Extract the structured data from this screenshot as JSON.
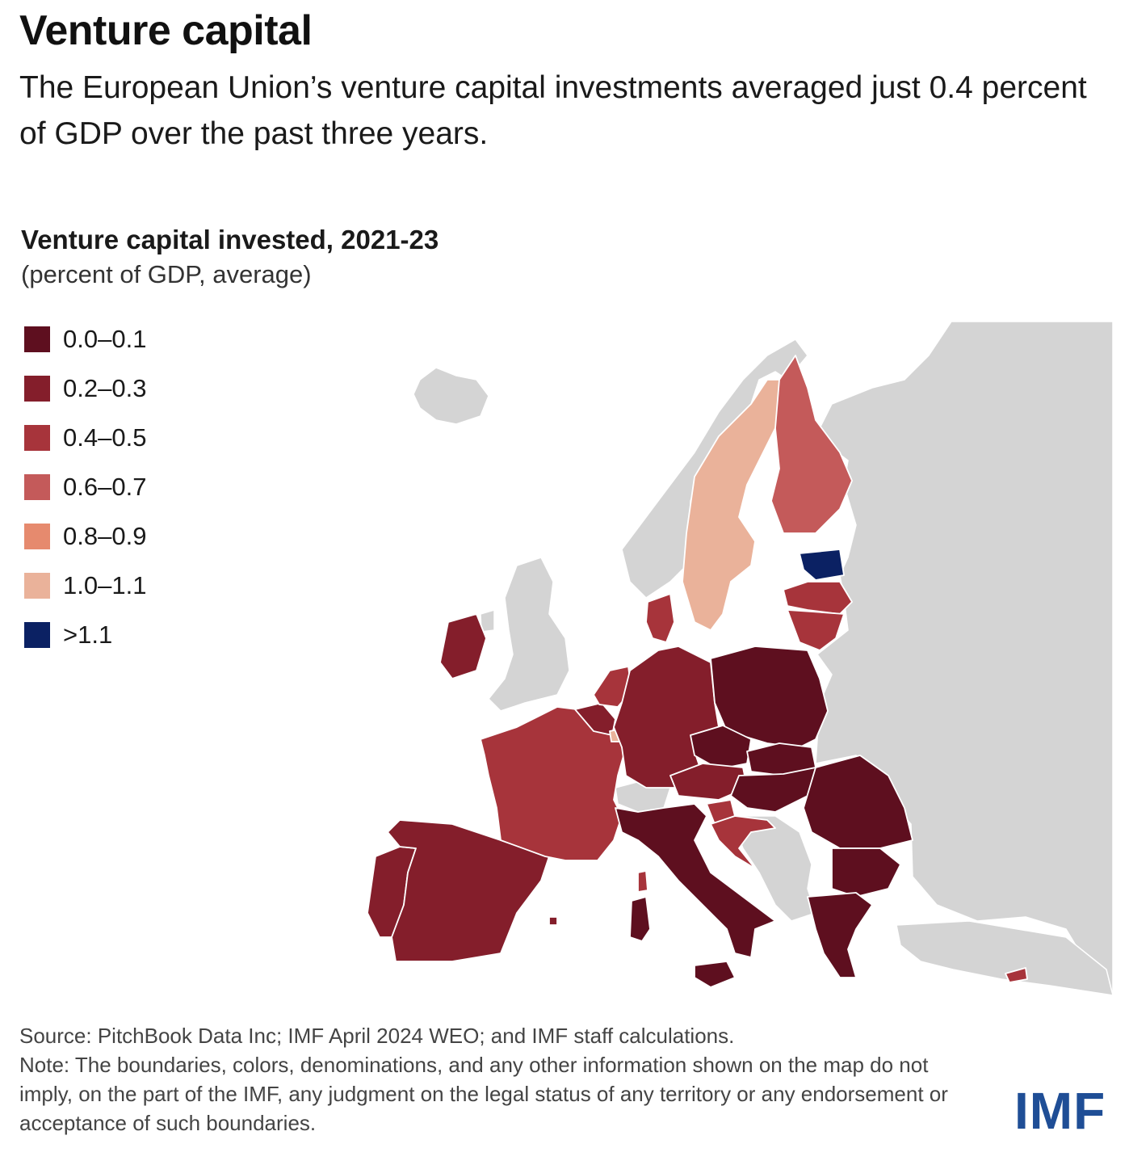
{
  "header": {
    "title": "Venture capital",
    "subtitle": "The European Union’s venture capital investments averaged just 0.4 percent of GDP over the past three years."
  },
  "chart": {
    "title": "Venture capital invested, 2021-23",
    "subtitle": "(percent of GDP, average)"
  },
  "legend": [
    {
      "label": "0.0–0.1",
      "color": "#5e0f1f"
    },
    {
      "label": "0.2–0.3",
      "color": "#841e2b"
    },
    {
      "label": "0.4–0.5",
      "color": "#a7343b"
    },
    {
      "label": "0.6–0.7",
      "color": "#c45a5a"
    },
    {
      "label": "0.8–0.9",
      "color": "#e68a6e"
    },
    {
      "label": "1.0–1.1",
      "color": "#eab29a"
    },
    {
      "label": ">1.1",
      "color": "#0b2163"
    }
  ],
  "colors": {
    "non_eu": "#d4d4d4",
    "border": "#ffffff",
    "logo": "#1f4e96"
  },
  "chart_data": {
    "type": "choropleth",
    "regions": [
      {
        "name": "Estonia",
        "bin": ">1.1"
      },
      {
        "name": "Sweden",
        "bin": "1.0–1.1"
      },
      {
        "name": "Luxembourg",
        "bin": "1.0–1.1"
      },
      {
        "name": "Finland",
        "bin": "0.6–0.7"
      },
      {
        "name": "Latvia",
        "bin": "0.4–0.5"
      },
      {
        "name": "Lithuania",
        "bin": "0.4–0.5"
      },
      {
        "name": "France",
        "bin": "0.4–0.5"
      },
      {
        "name": "Netherlands",
        "bin": "0.4–0.5"
      },
      {
        "name": "Denmark",
        "bin": "0.4–0.5"
      },
      {
        "name": "Slovenia",
        "bin": "0.4–0.5"
      },
      {
        "name": "Croatia",
        "bin": "0.4–0.5"
      },
      {
        "name": "Cyprus",
        "bin": "0.4–0.5"
      },
      {
        "name": "Germany",
        "bin": "0.2–0.3"
      },
      {
        "name": "Spain",
        "bin": "0.2–0.3"
      },
      {
        "name": "Portugal",
        "bin": "0.2–0.3"
      },
      {
        "name": "Ireland",
        "bin": "0.2–0.3"
      },
      {
        "name": "Belgium",
        "bin": "0.2–0.3"
      },
      {
        "name": "Austria",
        "bin": "0.2–0.3"
      },
      {
        "name": "Malta",
        "bin": "0.2–0.3"
      },
      {
        "name": "Poland",
        "bin": "0.0–0.1"
      },
      {
        "name": "Czech Republic",
        "bin": "0.0–0.1"
      },
      {
        "name": "Slovakia",
        "bin": "0.0–0.1"
      },
      {
        "name": "Hungary",
        "bin": "0.0–0.1"
      },
      {
        "name": "Romania",
        "bin": "0.0–0.1"
      },
      {
        "name": "Bulgaria",
        "bin": "0.0–0.1"
      },
      {
        "name": "Greece",
        "bin": "0.0–0.1"
      },
      {
        "name": "Italy",
        "bin": "0.0–0.1"
      }
    ]
  },
  "footer": {
    "source": "Source: PitchBook Data Inc; IMF April 2024 WEO; and IMF staff calculations.",
    "note": "Note: The boundaries, colors, denominations, and any other information shown on the map do not imply, on the part of the IMF, any judgment on the legal status of any territory or any endorsement or acceptance of such boundaries.",
    "logo": "IMF"
  }
}
